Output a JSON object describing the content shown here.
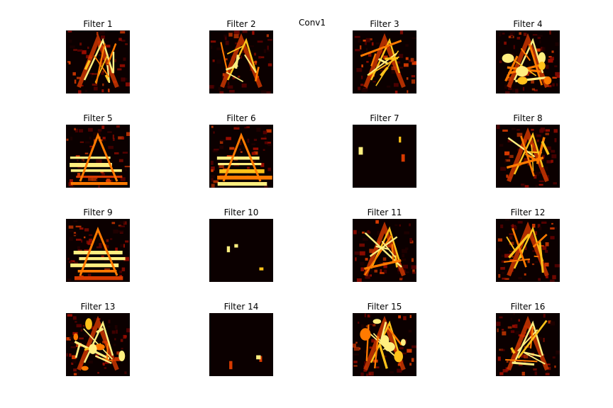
{
  "figure": {
    "title": "Conv1",
    "colormap": "hot",
    "panels": [
      {
        "label": "Filter 1",
        "motif": "edge"
      },
      {
        "label": "Filter 2",
        "motif": "edge"
      },
      {
        "label": "Filter 3",
        "motif": "edge"
      },
      {
        "label": "Filter 4",
        "motif": "blob"
      },
      {
        "label": "Filter 5",
        "motif": "bands"
      },
      {
        "label": "Filter 6",
        "motif": "bands"
      },
      {
        "label": "Filter 7",
        "motif": "sparse"
      },
      {
        "label": "Filter 8",
        "motif": "edge"
      },
      {
        "label": "Filter 9",
        "motif": "bands"
      },
      {
        "label": "Filter 10",
        "motif": "sparse"
      },
      {
        "label": "Filter 11",
        "motif": "edge"
      },
      {
        "label": "Filter 12",
        "motif": "edge"
      },
      {
        "label": "Filter 13",
        "motif": "blob"
      },
      {
        "label": "Filter 14",
        "motif": "sparse"
      },
      {
        "label": "Filter 15",
        "motif": "blob"
      },
      {
        "label": "Filter 16",
        "motif": "edge"
      }
    ]
  }
}
